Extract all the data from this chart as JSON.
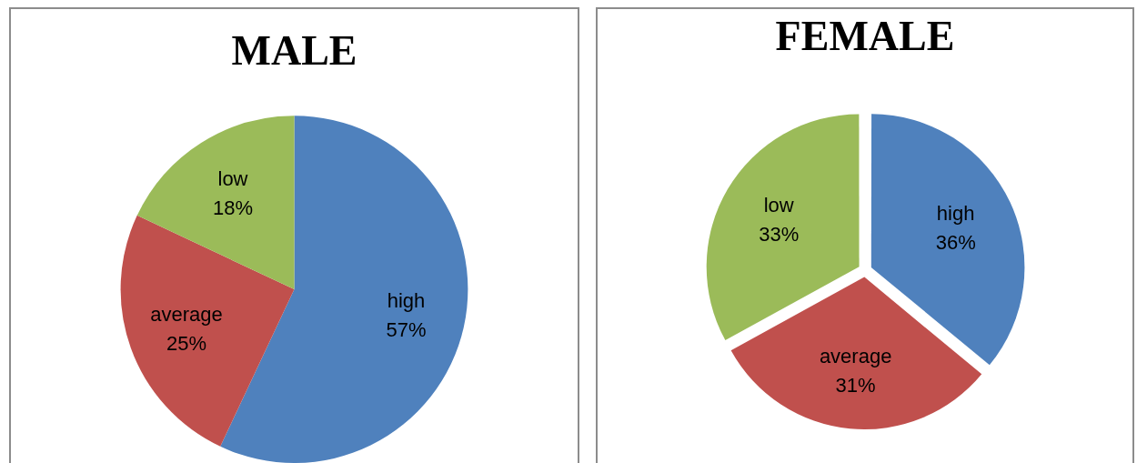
{
  "chart_data": [
    {
      "type": "pie",
      "title": "MALE",
      "categories": [
        "high",
        "average",
        "low"
      ],
      "values": [
        57,
        25,
        18
      ],
      "colors": [
        "#4f81bd",
        "#c0504d",
        "#9bbb59"
      ],
      "value_labels": [
        "57%",
        "25%",
        "18%"
      ]
    },
    {
      "type": "pie",
      "title": "FEMALE",
      "categories": [
        "high",
        "average",
        "low"
      ],
      "values": [
        36,
        31,
        33
      ],
      "colors": [
        "#4f81bd",
        "#c0504d",
        "#9bbb59"
      ],
      "value_labels": [
        "36%",
        "31%",
        "33%"
      ]
    }
  ]
}
